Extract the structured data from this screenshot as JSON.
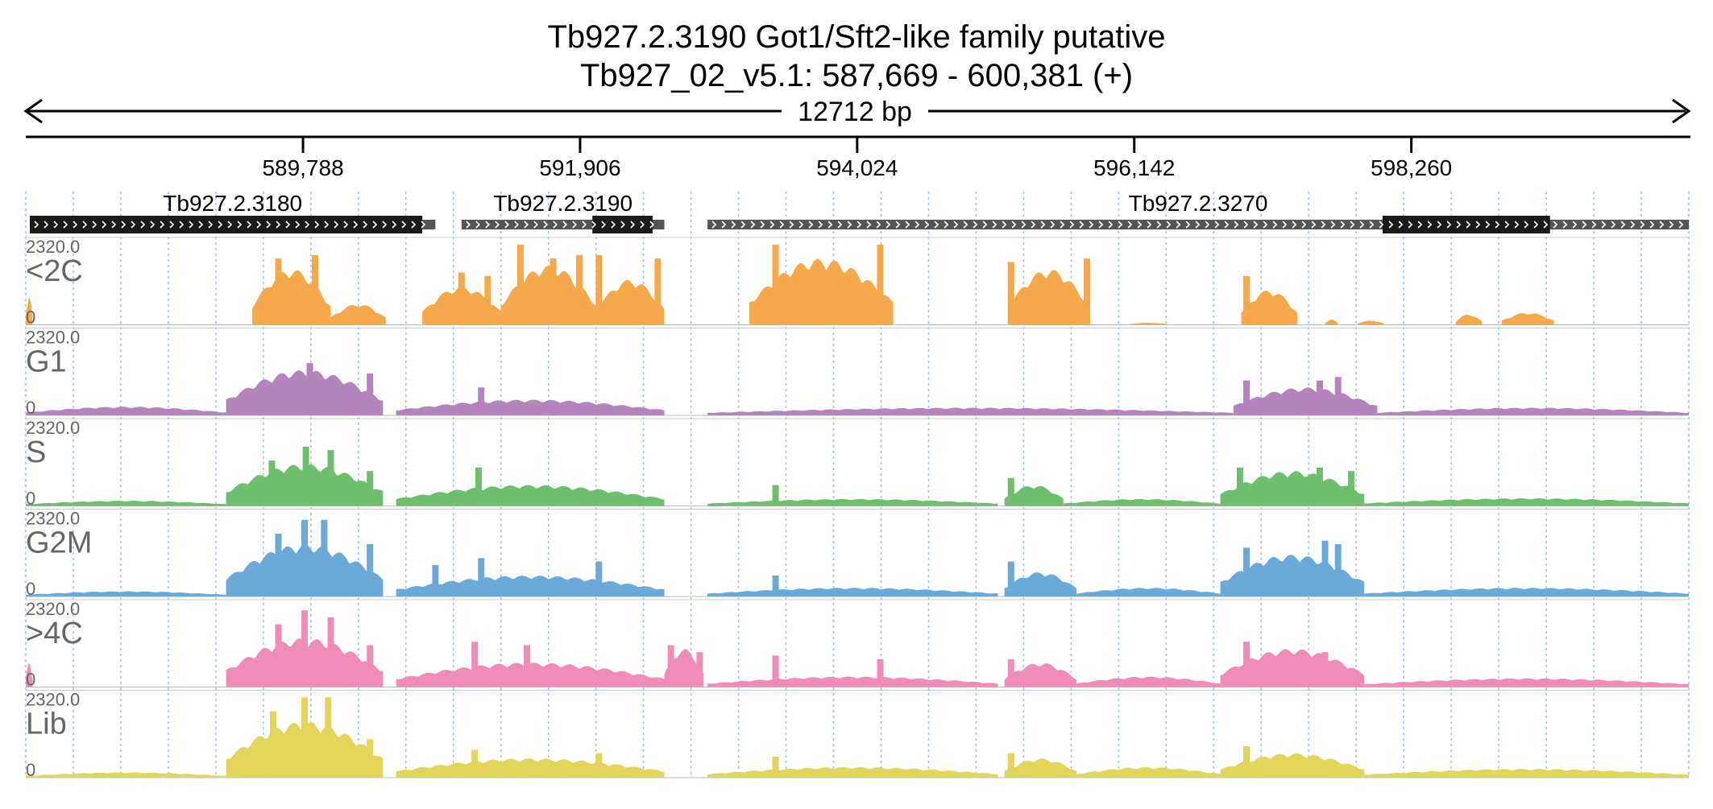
{
  "header": {
    "title_line1": "Tb927.2.3190  Got1/Sft2-like family  putative",
    "title_line2": "Tb927_02_v5.1: 587,669 - 600,381 (+)",
    "span_label": "12712 bp"
  },
  "colors": {
    "axis": "#000000",
    "gene_thick": "#1a1a1a",
    "gene_thin": "#555555",
    "grid": "#9ec3e6",
    "track_label": "#666666"
  },
  "chart_data": {
    "type": "area",
    "title": "Tb927.2.3190  Got1/Sft2-like family  putative",
    "region": {
      "chrom": "Tb927_02_v5.1",
      "start": 587669,
      "end": 600381,
      "strand": "+"
    },
    "x_ticks": [
      {
        "value": 589788,
        "label": "589,788"
      },
      {
        "value": 591906,
        "label": "591,906"
      },
      {
        "value": 594024,
        "label": "594,024"
      },
      {
        "value": 596142,
        "label": "596,142"
      },
      {
        "value": 598260,
        "label": "598,260"
      }
    ],
    "genes": [
      {
        "name": "Tb927.2.3180",
        "start": 587700,
        "end": 590800,
        "cds": [
          587700,
          590700
        ]
      },
      {
        "name": "Tb927.2.3190",
        "start": 591000,
        "end": 592550,
        "cds": [
          592000,
          592460
        ]
      },
      {
        "name": "Tb927.2.3270",
        "start": 592880,
        "end": 600381,
        "cds": [
          598040,
          599320
        ]
      }
    ],
    "y_max_label": "2320.0",
    "y_min_label": "0",
    "ylim": [
      0,
      2320
    ],
    "tracks": [
      {
        "name": "<2C",
        "color": "#f5a94a",
        "segments": [
          {
            "start": 587669,
            "end": 587720,
            "peak": 800
          },
          {
            "start": 589400,
            "end": 590000,
            "peak": 1600,
            "spikes": [
              [
                589600,
                1900
              ],
              [
                589880,
                2000
              ]
            ]
          },
          {
            "start": 590000,
            "end": 590420,
            "peak": 600
          },
          {
            "start": 590700,
            "end": 591300,
            "peak": 1100,
            "spikes": [
              [
                591000,
                1500
              ],
              [
                591200,
                1400
              ]
            ]
          },
          {
            "start": 591300,
            "end": 592030,
            "peak": 1700,
            "spikes": [
              [
                591450,
                2300
              ],
              [
                591700,
                1900
              ],
              [
                591900,
                2000
              ]
            ]
          },
          {
            "start": 592030,
            "end": 592550,
            "peak": 1300,
            "spikes": [
              [
                592050,
                2000
              ],
              [
                592500,
                1900
              ]
            ]
          },
          {
            "start": 593200,
            "end": 594300,
            "peak": 1900,
            "spikes": [
              [
                593400,
                2300
              ],
              [
                594200,
                2300
              ]
            ]
          },
          {
            "start": 595180,
            "end": 595800,
            "peak": 1600,
            "spikes": [
              [
                595200,
                1800
              ],
              [
                595780,
                1900
              ]
            ]
          },
          {
            "start": 596100,
            "end": 596400,
            "peak": 60
          },
          {
            "start": 596960,
            "end": 597390,
            "peak": 1000,
            "spikes": [
              [
                597000,
                1400
              ]
            ]
          },
          {
            "start": 597600,
            "end": 597700,
            "peak": 150
          },
          {
            "start": 597850,
            "end": 598050,
            "peak": 120
          },
          {
            "start": 598600,
            "end": 598800,
            "peak": 300
          },
          {
            "start": 598950,
            "end": 599350,
            "peak": 350
          }
        ]
      },
      {
        "name": "G1",
        "color": "#b583bd",
        "segments": [
          {
            "start": 587669,
            "end": 589200,
            "peak": 250
          },
          {
            "start": 589200,
            "end": 590400,
            "peak": 1300,
            "spikes": [
              [
                589600,
                1000
              ],
              [
                589840,
                1500
              ],
              [
                590300,
                1200
              ]
            ]
          },
          {
            "start": 590500,
            "end": 592550,
            "peak": 450,
            "spikes": [
              [
                591150,
                800
              ]
            ]
          },
          {
            "start": 592880,
            "end": 596900,
            "peak": 220
          },
          {
            "start": 596900,
            "end": 598000,
            "peak": 800,
            "spikes": [
              [
                597000,
                1000
              ],
              [
                597560,
                1000
              ],
              [
                597700,
                1100
              ]
            ]
          },
          {
            "start": 598000,
            "end": 600381,
            "peak": 220
          }
        ]
      },
      {
        "name": "S",
        "color": "#6dbf6d",
        "segments": [
          {
            "start": 587669,
            "end": 589200,
            "peak": 150
          },
          {
            "start": 589200,
            "end": 590400,
            "peak": 1200,
            "spikes": [
              [
                589550,
                1300
              ],
              [
                589810,
                1700
              ],
              [
                590000,
                1600
              ],
              [
                590300,
                1000
              ]
            ]
          },
          {
            "start": 590500,
            "end": 592550,
            "peak": 600,
            "spikes": [
              [
                591130,
                1100
              ]
            ]
          },
          {
            "start": 592880,
            "end": 595100,
            "peak": 200,
            "spikes": [
              [
                593400,
                600
              ]
            ]
          },
          {
            "start": 595150,
            "end": 595600,
            "peak": 600,
            "spikes": [
              [
                595200,
                800
              ]
            ]
          },
          {
            "start": 595600,
            "end": 596800,
            "peak": 200
          },
          {
            "start": 596800,
            "end": 597900,
            "peak": 1000,
            "spikes": [
              [
                596950,
                1100
              ],
              [
                597560,
                1100
              ],
              [
                597800,
                1000
              ]
            ]
          },
          {
            "start": 597900,
            "end": 600381,
            "peak": 220
          }
        ]
      },
      {
        "name": "G2M",
        "color": "#6aa9d8",
        "segments": [
          {
            "start": 587669,
            "end": 589200,
            "peak": 150
          },
          {
            "start": 589200,
            "end": 590400,
            "peak": 1500,
            "spikes": [
              [
                589600,
                1800
              ],
              [
                589800,
                2200
              ],
              [
                589950,
                2200
              ],
              [
                590300,
                1500
              ]
            ]
          },
          {
            "start": 590500,
            "end": 592550,
            "peak": 600,
            "spikes": [
              [
                590800,
                900
              ],
              [
                591150,
                1100
              ],
              [
                592050,
                1000
              ]
            ]
          },
          {
            "start": 592880,
            "end": 595100,
            "peak": 250,
            "spikes": [
              [
                593400,
                600
              ]
            ]
          },
          {
            "start": 595150,
            "end": 595700,
            "peak": 700,
            "spikes": [
              [
                595200,
                1000
              ]
            ]
          },
          {
            "start": 595700,
            "end": 596800,
            "peak": 250
          },
          {
            "start": 596800,
            "end": 597900,
            "peak": 1200,
            "spikes": [
              [
                597000,
                1400
              ],
              [
                597600,
                1600
              ],
              [
                597700,
                1500
              ]
            ]
          },
          {
            "start": 597900,
            "end": 600381,
            "peak": 250
          }
        ]
      },
      {
        "name": ">4C",
        "color": "#f08cb8",
        "segments": [
          {
            "start": 587669,
            "end": 587720,
            "peak": 700
          },
          {
            "start": 589200,
            "end": 590400,
            "peak": 1400,
            "spikes": [
              [
                589600,
                1800
              ],
              [
                589800,
                2200
              ],
              [
                590000,
                2000
              ],
              [
                590300,
                1200
              ]
            ]
          },
          {
            "start": 590500,
            "end": 592550,
            "peak": 700,
            "spikes": [
              [
                591100,
                1300
              ],
              [
                591500,
                1200
              ]
            ]
          },
          {
            "start": 592550,
            "end": 592850,
            "peak": 1100,
            "spikes": [
              [
                592600,
                1200
              ],
              [
                592820,
                1000
              ]
            ]
          },
          {
            "start": 592880,
            "end": 595100,
            "peak": 300,
            "spikes": [
              [
                593400,
                900
              ],
              [
                594200,
                800
              ]
            ]
          },
          {
            "start": 595150,
            "end": 595700,
            "peak": 700,
            "spikes": [
              [
                595200,
                800
              ]
            ]
          },
          {
            "start": 595700,
            "end": 596800,
            "peak": 300
          },
          {
            "start": 596800,
            "end": 597900,
            "peak": 1100,
            "spikes": [
              [
                597000,
                1300
              ],
              [
                597600,
                1000
              ]
            ]
          },
          {
            "start": 597900,
            "end": 600381,
            "peak": 250
          }
        ]
      },
      {
        "name": "Lib",
        "color": "#e3d45a",
        "segments": [
          {
            "start": 587669,
            "end": 589200,
            "peak": 150
          },
          {
            "start": 589200,
            "end": 590400,
            "peak": 1600,
            "spikes": [
              [
                589560,
                1900
              ],
              [
                589800,
                2300
              ],
              [
                589980,
                2300
              ],
              [
                590300,
                1100
              ]
            ]
          },
          {
            "start": 590500,
            "end": 592550,
            "peak": 550,
            "spikes": [
              [
                591100,
                800
              ],
              [
                592050,
                700
              ]
            ]
          },
          {
            "start": 592880,
            "end": 595100,
            "peak": 300,
            "spikes": [
              [
                593400,
                600
              ]
            ]
          },
          {
            "start": 595150,
            "end": 595700,
            "peak": 550,
            "spikes": [
              [
                595200,
                700
              ]
            ]
          },
          {
            "start": 595700,
            "end": 596800,
            "peak": 300
          },
          {
            "start": 596800,
            "end": 597900,
            "peak": 700,
            "spikes": [
              [
                597000,
                900
              ]
            ]
          },
          {
            "start": 597900,
            "end": 600381,
            "peak": 250
          }
        ]
      }
    ]
  }
}
